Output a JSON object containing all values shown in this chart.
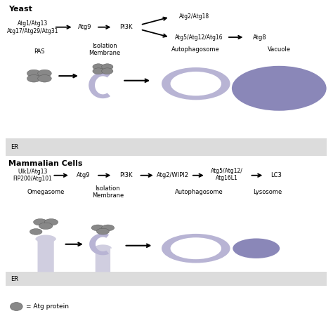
{
  "title_yeast": "Yeast",
  "title_mammalian": "Mammalian Cells",
  "yeast_line1": "Atg1/Atg13",
  "yeast_line2": "Atg17/Atg29/Atg31",
  "yeast_atg9": "Atg9",
  "yeast_pi3k": "PI3K",
  "yeast_branch1": "Atg2/Atg18",
  "yeast_branch2": "Atg5/Atg12/Atg16",
  "yeast_atg8": "Atg8",
  "yeast_pas": "PAS",
  "yeast_iso": "Isolation\nMembrane",
  "yeast_auto": "Autophagosome",
  "yeast_vac": "Vacuole",
  "yeast_er": "ER",
  "mamm_line1": "Ulk1/Atg13",
  "mamm_line2": "FIP200/Atg101",
  "mamm_atg9": "Atg9",
  "mamm_pi3k": "PI3K",
  "mamm_atg2": "Atg2/WIPI2",
  "mamm_atg5": "Atg5/Atg12/\nAtg16L1",
  "mamm_lc3": "LC3",
  "mamm_omega": "Omegasome",
  "mamm_iso": "Isolation\nMembrane",
  "mamm_auto": "Autophagosome",
  "mamm_lyso": "Lysosome",
  "mamm_er": "ER",
  "legend_circle": "= Atg protein",
  "col_lavender": "#b8b4d4",
  "col_lavender_dark": "#8a87b8",
  "col_gray_sphere": "#888888",
  "col_er_bg": "#dcdcdc",
  "col_omegasome": "#d0cee0",
  "col_white": "#ffffff",
  "col_black": "#000000",
  "col_panel_bg": "#ffffff"
}
